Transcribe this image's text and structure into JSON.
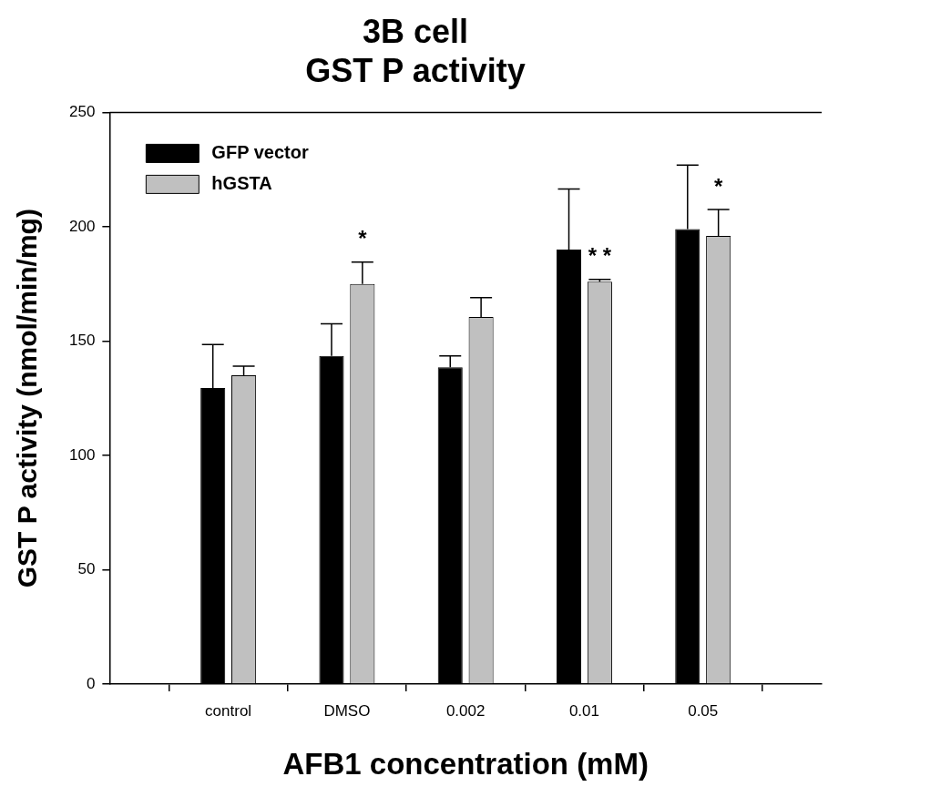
{
  "chart_data": {
    "type": "bar",
    "title": "3B cell",
    "subtitle": "GST P activity",
    "xlabel": "AFB1 concentration (mM)",
    "ylabel": "GST P activity (nmol/min/mg)",
    "categories": [
      "control",
      "DMSO",
      "0.002",
      "0.01",
      "0.05"
    ],
    "series": [
      {
        "name": "GFP vector",
        "color": "#000000",
        "values": [
          129.5,
          143.5,
          138.5,
          190,
          199
        ],
        "errors": [
          19,
          14,
          5,
          26.5,
          28
        ]
      },
      {
        "name": "hGSTA",
        "color": "#c0c0c0",
        "values": [
          135,
          175,
          160.5,
          176,
          196
        ],
        "errors": [
          4,
          9.5,
          8.5,
          1,
          11.5
        ]
      }
    ],
    "ylim": [
      0,
      250
    ],
    "yticks": [
      0,
      50,
      100,
      150,
      200,
      250
    ],
    "grid": false,
    "legend": "top left",
    "annotations": [
      {
        "text": "*",
        "x": "DMSO",
        "y": 184.5
      },
      {
        "text": "* *",
        "x": "0.01",
        "y": 177
      },
      {
        "text": "*",
        "x": "0.05",
        "y": 207.5
      }
    ]
  }
}
